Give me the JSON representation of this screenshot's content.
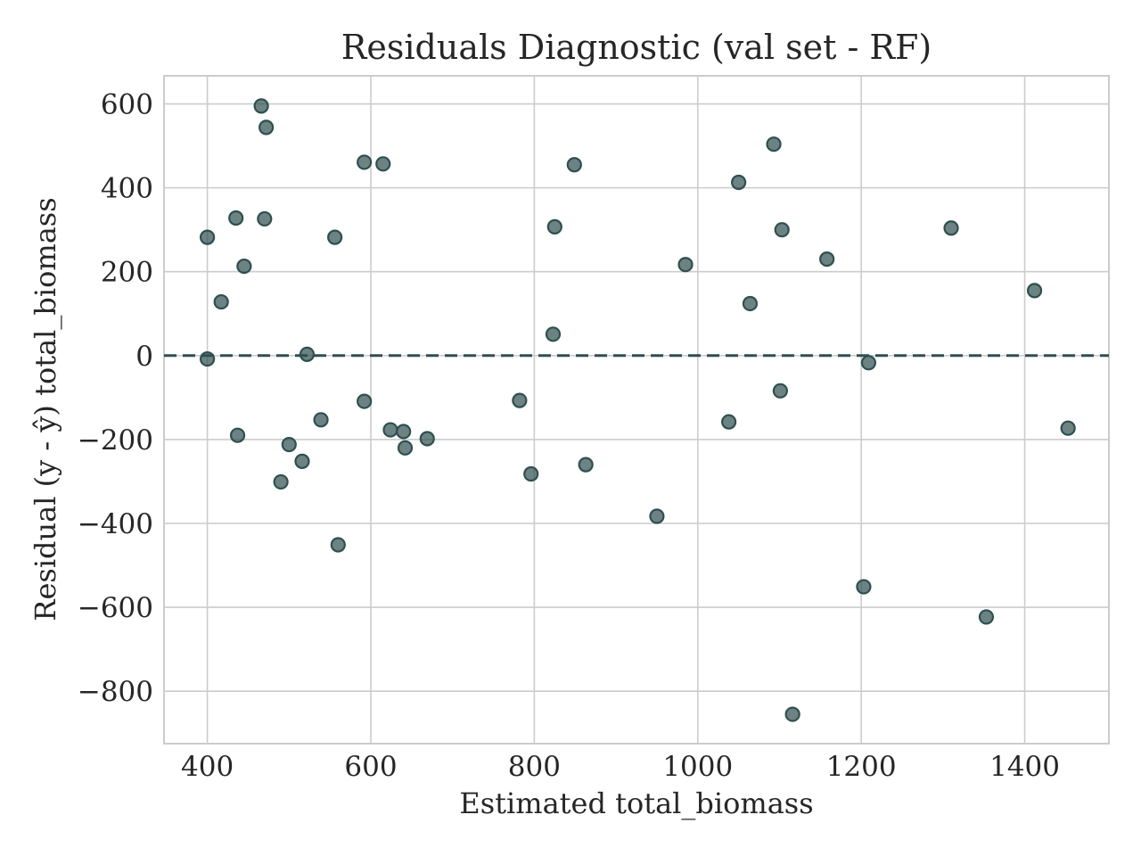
{
  "chart_data": {
    "type": "scatter",
    "title": "Residuals Diagnostic (val set - RF)",
    "xlabel": "Estimated total_biomass",
    "ylabel": "Residual (y - ŷ) total_biomass",
    "xlim": [
      347,
      1503
    ],
    "ylim": [
      -925,
      667
    ],
    "x_ticks": [
      400,
      600,
      800,
      1000,
      1200,
      1400
    ],
    "y_ticks": [
      -800,
      -600,
      -400,
      -200,
      0,
      200,
      400,
      600
    ],
    "x_tick_labels": [
      "400",
      "600",
      "800",
      "1000",
      "1200",
      "1400"
    ],
    "y_tick_labels": [
      "−800",
      "−600",
      "−400",
      "−200",
      "0",
      "200",
      "400",
      "600"
    ],
    "grid": true,
    "reference_line": {
      "y": 0,
      "style": "dashed",
      "color": "#2f4f4f"
    },
    "marker_color": "#2f4f4f",
    "points": [
      {
        "x": 400,
        "y": 282
      },
      {
        "x": 400,
        "y": -8
      },
      {
        "x": 417,
        "y": 128
      },
      {
        "x": 435,
        "y": 328
      },
      {
        "x": 437,
        "y": -190
      },
      {
        "x": 445,
        "y": 213
      },
      {
        "x": 466,
        "y": 595
      },
      {
        "x": 470,
        "y": 326
      },
      {
        "x": 472,
        "y": 544
      },
      {
        "x": 490,
        "y": -301
      },
      {
        "x": 500,
        "y": -212
      },
      {
        "x": 516,
        "y": -252
      },
      {
        "x": 522,
        "y": 3
      },
      {
        "x": 539,
        "y": -153
      },
      {
        "x": 556,
        "y": 282
      },
      {
        "x": 560,
        "y": -451
      },
      {
        "x": 592,
        "y": 461
      },
      {
        "x": 592,
        "y": -109
      },
      {
        "x": 615,
        "y": 457
      },
      {
        "x": 624,
        "y": -177
      },
      {
        "x": 640,
        "y": -181
      },
      {
        "x": 642,
        "y": -220
      },
      {
        "x": 669,
        "y": -198
      },
      {
        "x": 782,
        "y": -107
      },
      {
        "x": 796,
        "y": -282
      },
      {
        "x": 823,
        "y": 51
      },
      {
        "x": 825,
        "y": 307
      },
      {
        "x": 849,
        "y": 455
      },
      {
        "x": 863,
        "y": -260
      },
      {
        "x": 950,
        "y": -383
      },
      {
        "x": 985,
        "y": 217
      },
      {
        "x": 1038,
        "y": -158
      },
      {
        "x": 1050,
        "y": 413
      },
      {
        "x": 1064,
        "y": 124
      },
      {
        "x": 1093,
        "y": 504
      },
      {
        "x": 1101,
        "y": -84
      },
      {
        "x": 1103,
        "y": 300
      },
      {
        "x": 1116,
        "y": -855
      },
      {
        "x": 1158,
        "y": 230
      },
      {
        "x": 1203,
        "y": -551
      },
      {
        "x": 1209,
        "y": -17
      },
      {
        "x": 1310,
        "y": 304
      },
      {
        "x": 1353,
        "y": -623
      },
      {
        "x": 1412,
        "y": 155
      },
      {
        "x": 1453,
        "y": -173
      }
    ]
  }
}
